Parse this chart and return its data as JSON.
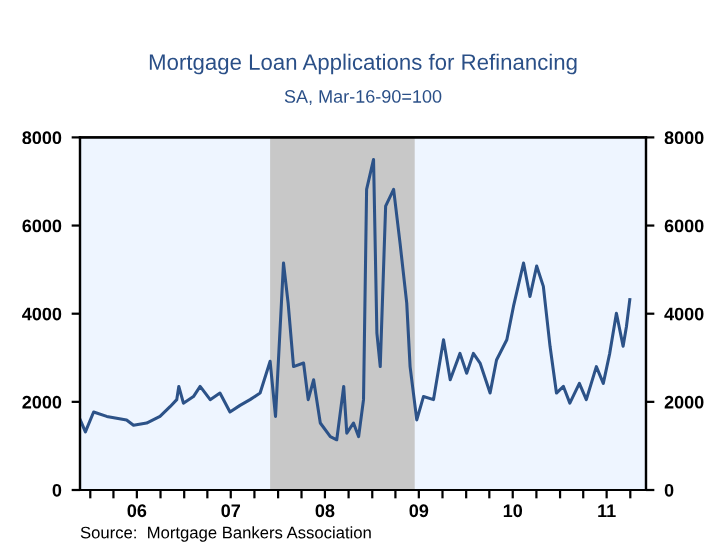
{
  "chart_data": {
    "type": "line",
    "title": "Mortgage Loan Applications for Refinancing",
    "subtitle": "SA, Mar-16-90=100",
    "annotations": [
      "Source:  Mortgage Bankers Association"
    ],
    "x": [
      "2005-11-23",
      "2005-12-13",
      "2006-01-14",
      "2006-03-06",
      "2006-05-22",
      "2006-06-18",
      "2006-08-08",
      "2006-09-29",
      "2006-11-07",
      "2006-12-03",
      "2006-12-11",
      "2006-12-29",
      "2007-02-06",
      "2007-03-04",
      "2007-04-12",
      "2007-05-20",
      "2007-06-28",
      "2007-08-06",
      "2007-09-14",
      "2007-10-23",
      "2007-12-01",
      "2007-12-22",
      "2008-01-22",
      "2008-02-09",
      "2008-03-01",
      "2008-04-09",
      "2008-04-27",
      "2008-05-18",
      "2008-06-13",
      "2008-07-22",
      "2008-08-16",
      "2008-09-12",
      "2008-09-24",
      "2008-10-20",
      "2008-11-09",
      "2008-11-28",
      "2008-12-10",
      "2009-01-06",
      "2009-01-19",
      "2009-02-01",
      "2009-02-22",
      "2009-03-25",
      "2009-04-19",
      "2009-05-15",
      "2009-05-28",
      "2009-06-23",
      "2009-07-19",
      "2009-08-27",
      "2009-10-05",
      "2009-10-31",
      "2009-12-08",
      "2010-01-03",
      "2010-01-29",
      "2010-02-24",
      "2010-04-04",
      "2010-04-29",
      "2010-06-08",
      "2010-07-04",
      "2010-08-12",
      "2010-09-06",
      "2010-10-02",
      "2010-10-28",
      "2010-11-23",
      "2010-12-18",
      "2011-01-14",
      "2011-02-08",
      "2011-03-17",
      "2011-04-13",
      "2011-05-22",
      "2011-06-18",
      "2011-07-13",
      "2011-08-08",
      "2011-09-03",
      "2011-09-16",
      "2011-09-29"
    ],
    "series": [
      {
        "color": "#2c5288",
        "values": [
          1590,
          1320,
          1770,
          1670,
          1590,
          1470,
          1520,
          1670,
          1890,
          2050,
          2350,
          1970,
          2120,
          2350,
          2050,
          2200,
          1770,
          1920,
          2050,
          2200,
          2920,
          1670,
          5150,
          4240,
          2800,
          2880,
          2050,
          2500,
          1520,
          1210,
          1140,
          2350,
          1290,
          1520,
          1210,
          2050,
          6820,
          7500,
          3560,
          2800,
          6440,
          6820,
          5600,
          4240,
          2800,
          1590,
          2120,
          2050,
          3410,
          2500,
          3100,
          2650,
          3100,
          2880,
          2200,
          2950,
          3410,
          4170,
          5150,
          4390,
          5080,
          4620,
          3260,
          2200,
          2350,
          1970,
          2420,
          2050,
          2800,
          2420,
          3100,
          4010,
          3260,
          3710,
          4320
        ]
      }
    ],
    "xlim": [
      "2005-11-22",
      "2011-12-01"
    ],
    "xticks": [
      {
        "value": "2006-01-01",
        "label": null
      },
      {
        "value": "2006-04-01",
        "label": null
      },
      {
        "value": "2006-07-01",
        "label": "06"
      },
      {
        "value": "2006-10-01",
        "label": null
      },
      {
        "value": "2007-01-01",
        "label": null
      },
      {
        "value": "2007-04-01",
        "label": null
      },
      {
        "value": "2007-07-01",
        "label": "07"
      },
      {
        "value": "2007-10-01",
        "label": null
      },
      {
        "value": "2008-01-01",
        "label": null
      },
      {
        "value": "2008-04-01",
        "label": null
      },
      {
        "value": "2008-07-01",
        "label": "08"
      },
      {
        "value": "2008-10-01",
        "label": null
      },
      {
        "value": "2009-01-01",
        "label": null
      },
      {
        "value": "2009-04-01",
        "label": null
      },
      {
        "value": "2009-07-01",
        "label": "09"
      },
      {
        "value": "2009-10-01",
        "label": null
      },
      {
        "value": "2010-01-01",
        "label": null
      },
      {
        "value": "2010-04-01",
        "label": null
      },
      {
        "value": "2010-07-01",
        "label": "10"
      },
      {
        "value": "2010-10-01",
        "label": null
      },
      {
        "value": "2011-01-01",
        "label": null
      },
      {
        "value": "2011-04-01",
        "label": null
      },
      {
        "value": "2011-07-01",
        "label": "11"
      },
      {
        "value": "2011-10-01",
        "label": null
      }
    ],
    "ylim": [
      0,
      8000
    ],
    "yticks": [
      0,
      2000,
      4000,
      6000,
      8000
    ],
    "y2lim": [
      0,
      8000
    ],
    "y2ticks": [
      0,
      2000,
      4000,
      6000,
      8000
    ],
    "bands": [
      {
        "axis": "x",
        "from": "2007-12-01",
        "to": "2009-06-15",
        "color": "#c8c8c8"
      }
    ],
    "grid": false,
    "line_style": "solid",
    "marker": "none"
  }
}
